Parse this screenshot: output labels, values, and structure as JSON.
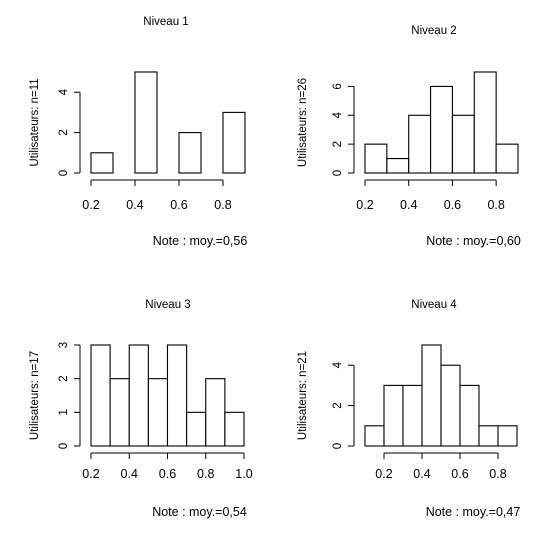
{
  "chart_data": [
    {
      "type": "bar",
      "title": "Niveau 1",
      "ylabel": "Utilisateurs: n=11",
      "xlabel": "Note : moy.=0,56",
      "bin_edges": [
        0.2,
        0.3,
        0.4,
        0.5,
        0.6,
        0.7,
        0.8,
        0.9
      ],
      "values": [
        1,
        0,
        5,
        0,
        2,
        0,
        3
      ],
      "xlim": [
        0.2,
        0.9
      ],
      "ylim": [
        0,
        5
      ],
      "xticks": [
        "0.2",
        "0.4",
        "0.6",
        "0.8"
      ],
      "xtick_values": [
        0.2,
        0.4,
        0.6,
        0.8
      ],
      "yticks": [
        "0",
        "2",
        "4"
      ],
      "ytick_values": [
        0,
        2,
        4
      ]
    },
    {
      "type": "bar",
      "title": "Niveau 2",
      "ylabel": "Utilisateurs: n=26",
      "xlabel": "Note : moy.=0,60",
      "bin_edges": [
        0.2,
        0.3,
        0.4,
        0.5,
        0.6,
        0.7,
        0.8,
        0.9
      ],
      "values": [
        2,
        1,
        4,
        6,
        4,
        7,
        2
      ],
      "xlim": [
        0.2,
        0.9
      ],
      "ylim": [
        0,
        7
      ],
      "xticks": [
        "0.2",
        "0.4",
        "0.6",
        "0.8"
      ],
      "xtick_values": [
        0.2,
        0.4,
        0.6,
        0.8
      ],
      "yticks": [
        "0",
        "2",
        "4",
        "6"
      ],
      "ytick_values": [
        0,
        2,
        4,
        6
      ]
    },
    {
      "type": "bar",
      "title": "Niveau 3",
      "ylabel": "Utilisateurs: n=17",
      "xlabel": "Note : moy.=0,54",
      "bin_edges": [
        0.2,
        0.3,
        0.4,
        0.5,
        0.6,
        0.7,
        0.8,
        0.9,
        1.0
      ],
      "values": [
        3,
        2,
        3,
        2,
        3,
        1,
        2,
        1
      ],
      "xlim": [
        0.2,
        1.0
      ],
      "ylim": [
        0,
        3
      ],
      "xticks": [
        "0.2",
        "0.4",
        "0.6",
        "0.8",
        "1.0"
      ],
      "xtick_values": [
        0.2,
        0.4,
        0.6,
        0.8,
        1.0
      ],
      "yticks": [
        "0",
        "1",
        "2",
        "3"
      ],
      "ytick_values": [
        0,
        1,
        2,
        3
      ]
    },
    {
      "type": "bar",
      "title": "Niveau 4",
      "ylabel": "Utilisateurs: n=21",
      "xlabel": "Note : moy.=0,47",
      "bin_edges": [
        0.1,
        0.2,
        0.3,
        0.4,
        0.5,
        0.6,
        0.7,
        0.8,
        0.9
      ],
      "values": [
        1,
        3,
        3,
        5,
        4,
        3,
        1,
        1
      ],
      "xlim": [
        0.1,
        0.9
      ],
      "ylim": [
        0,
        5
      ],
      "xticks": [
        "0.2",
        "0.4",
        "0.6",
        "0.8"
      ],
      "xtick_values": [
        0.2,
        0.4,
        0.6,
        0.8
      ],
      "yticks": [
        "0",
        "2",
        "4"
      ],
      "ytick_values": [
        0,
        2,
        4
      ]
    }
  ]
}
